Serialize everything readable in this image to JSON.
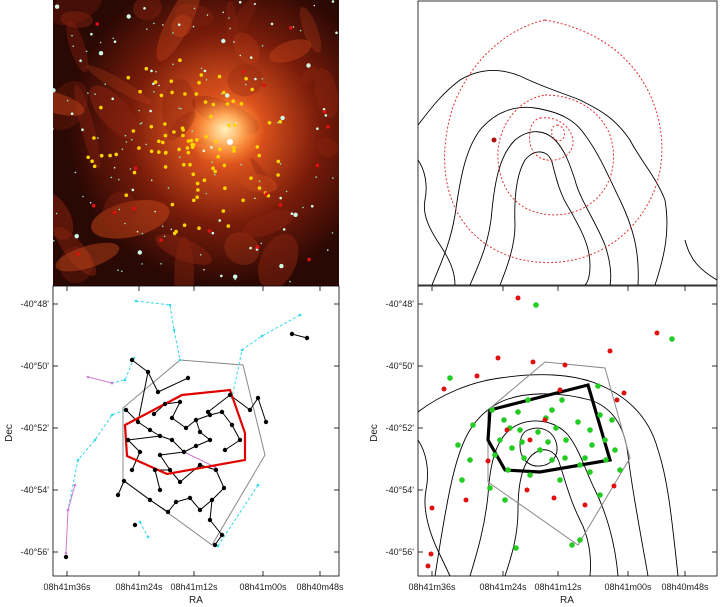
{
  "figure": {
    "dec_ticks": [
      "-40°48'",
      "-40°50'",
      "-40°52'",
      "-40°54'",
      "-40°56'"
    ],
    "ra_ticks": [
      "08h41m36s",
      "08h41m24s",
      "08h41m12s",
      "08h41m00s",
      "08h40m48s"
    ],
    "x_label": "RA",
    "y_label": "Dec"
  },
  "colors": {
    "nebula_bg": "#3a0b05",
    "nebula_glow": "#e0551a",
    "cluster_member": "#ffd400",
    "red_source": "#e01010",
    "green_source": "#22cc22",
    "tree_edge": "#000000",
    "cyan_edge": "#35d7e6",
    "pink_edge": "#d07ad0",
    "hull": "#888888",
    "core_outline_red": "#e00000",
    "core_outline_black": "#000000",
    "contour": "#000000",
    "dotted_contour": "#e03030"
  },
  "chart_data": [
    {
      "type": "scatter",
      "panel": "top-left",
      "description_source": "infrared composite image with overlaid sources",
      "series": [
        {
          "values": "cluster-member sources (yellow)"
        },
        {
          "values": "field sources (red)"
        }
      ]
    },
    {
      "type": "line",
      "panel": "top-right",
      "series": [
        {
          "values": "solid black contours"
        },
        {
          "values": "dotted red contours"
        }
      ]
    },
    {
      "type": "scatter",
      "panel": "bottom-left",
      "xlabel": "RA",
      "ylabel": "Dec",
      "x_ticks": [
        "08h41m36s",
        "08h41m24s",
        "08h41m12s",
        "08h41m00s",
        "08h40m48s"
      ],
      "y_ticks": [
        "-40°48'",
        "-40°50'",
        "-40°52'",
        "-40°54'",
        "-40°56'"
      ],
      "points": [
        [
          -0.05,
          -50.6
        ],
        [
          0.9,
          -51.05
        ],
        [
          1.2,
          -50.7
        ],
        [
          1.9,
          -51.3
        ],
        [
          1.5,
          -51.6
        ],
        [
          2.4,
          -51.5
        ],
        [
          2.0,
          -51.2
        ],
        [
          2.9,
          -51.3
        ],
        [
          3.2,
          -51.8
        ],
        [
          3.6,
          -52.6
        ],
        [
          1.2,
          -51.7
        ],
        [
          0.2,
          -51.9
        ],
        [
          -0.1,
          -53.5
        ],
        [
          0.9,
          -53.4
        ],
        [
          2.2,
          -53.6
        ],
        [
          3.1,
          -53.1
        ],
        [
          1.4,
          -54.4
        ],
        [
          2.6,
          -54.1
        ],
        [
          2.8,
          -55.3
        ],
        [
          3.6,
          -54.6
        ],
        [
          4.4,
          -51.9
        ],
        [
          4.2,
          -52.3
        ],
        [
          5.7,
          -50.2
        ],
        [
          6.3,
          -50.3
        ],
        [
          0.3,
          -52.4
        ]
      ]
    },
    {
      "type": "scatter",
      "panel": "bottom-right",
      "xlabel": "RA",
      "ylabel": "Dec",
      "x_ticks": [
        "08h41m36s",
        "08h41m24s",
        "08h41m12s",
        "08h41m00s",
        "08h40m48s"
      ],
      "y_ticks": [
        "-40°48'",
        "-40°50'",
        "-40°52'",
        "-40°54'",
        "-40°56'"
      ],
      "series": [
        {
          "color": "green",
          "values": "green sources"
        },
        {
          "color": "red",
          "values": "red sources"
        }
      ]
    }
  ]
}
